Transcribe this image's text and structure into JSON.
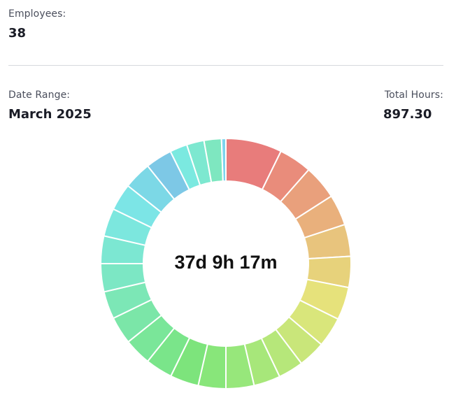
{
  "summary": {
    "employees_label": "Employees:",
    "employees_value": "38",
    "date_range_label": "Date Range:",
    "date_range_value": "March 2025",
    "total_hours_label": "Total Hours:",
    "total_hours_value": "897.30"
  },
  "chart_data": {
    "type": "pie",
    "variant": "donut",
    "center_label": "37d 9h 17m",
    "total": 897.3,
    "legend": "none",
    "values": [
      58.0,
      34.0,
      35.5,
      32.0,
      33.0,
      32.0,
      34.0,
      31.0,
      28.0,
      26.0,
      27.5,
      29.0,
      28.5,
      29.5,
      28.0,
      28.0,
      28.5,
      28.5,
      29.0,
      28.5,
      29.0,
      28.0,
      28.5,
      27.5,
      18.0,
      18.0,
      18.0,
      4.5
    ],
    "colors": [
      "#e87c7b",
      "#e98c7b",
      "#e9a07c",
      "#e9b07c",
      "#e8c47d",
      "#e7d27b",
      "#e6e27b",
      "#d9e67b",
      "#c9e67a",
      "#b6e77a",
      "#a7e77a",
      "#97e77b",
      "#88e67a",
      "#7de47c",
      "#7ae58a",
      "#7ae699",
      "#7be6a8",
      "#7ce7b6",
      "#7ce7c4",
      "#7ce7d2",
      "#7ce7de",
      "#7ce5e6",
      "#7cd8e6",
      "#7dc8e6",
      "#7be9e0",
      "#7de8d0",
      "#7ee7c0",
      "#7ed4ee"
    ]
  }
}
